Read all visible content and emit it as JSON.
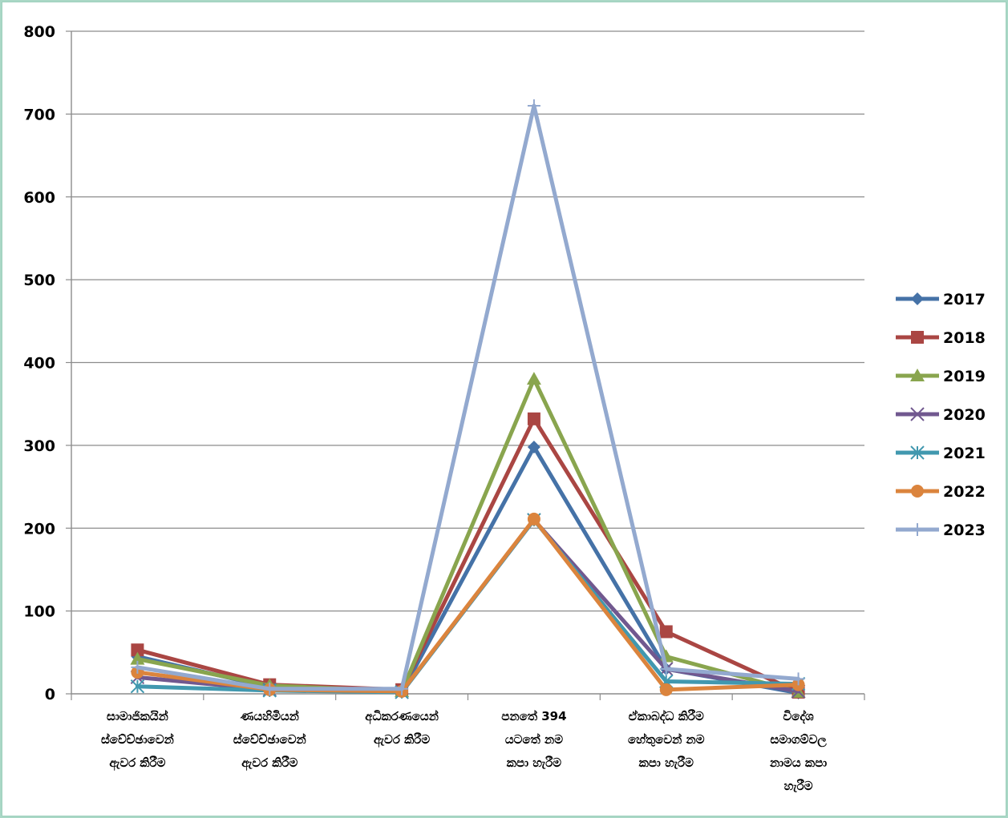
{
  "chart_data": {
    "type": "line",
    "title": "",
    "xlabel": "",
    "ylabel": "",
    "ylim": [
      0,
      800
    ],
    "yticks": [
      0,
      100,
      200,
      300,
      400,
      500,
      600,
      700,
      800
    ],
    "grid": "horizontal",
    "legend_position": "right",
    "categories": [
      [
        "සාමාජිකයින්",
        "ස්වේච්ඡාවෙන්",
        "ඇවර කිරීම"
      ],
      [
        "ණයහිමියන්",
        "ස්වේච්ඡාවෙන්",
        "ඇවර කිරීම"
      ],
      [
        "අධිකරණයෙන්",
        "ඇවර කිරීම"
      ],
      [
        "පනතේ 394",
        "යටතේ නම",
        "කපා හැරීම"
      ],
      [
        "ඒකාබද්ධ කිරීම",
        "හේතුවෙන් නම",
        "කපා හැරීම"
      ],
      [
        "විදේශ",
        "සමාගම්වල",
        "නාමය කපා",
        "හැරීම"
      ]
    ],
    "series": [
      {
        "name": "2017",
        "color": "#4572a7",
        "marker": "diamond",
        "values": [
          45,
          8,
          2,
          298,
          30,
          1
        ]
      },
      {
        "name": "2018",
        "color": "#aa4643",
        "marker": "square",
        "values": [
          53,
          11,
          5,
          332,
          75,
          2
        ]
      },
      {
        "name": "2019",
        "color": "#89a54e",
        "marker": "triangle",
        "values": [
          42,
          10,
          3,
          380,
          45,
          2
        ]
      },
      {
        "name": "2020",
        "color": "#71588f",
        "marker": "x",
        "values": [
          20,
          5,
          2,
          210,
          30,
          3
        ]
      },
      {
        "name": "2021",
        "color": "#4198af",
        "marker": "star",
        "values": [
          9,
          4,
          2,
          210,
          15,
          12
        ]
      },
      {
        "name": "2022",
        "color": "#db843d",
        "marker": "circle",
        "values": [
          26,
          5,
          3,
          211,
          5,
          11
        ]
      },
      {
        "name": "2023",
        "color": "#93a9cf",
        "marker": "plus",
        "values": [
          32,
          6,
          6,
          710,
          30,
          18
        ]
      }
    ]
  }
}
